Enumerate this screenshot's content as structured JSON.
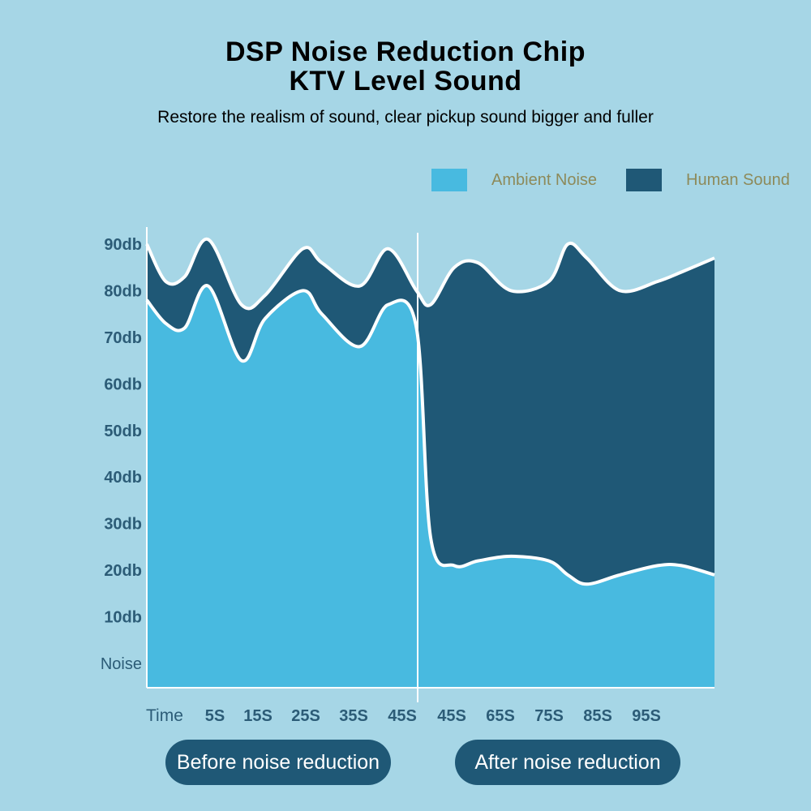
{
  "title_line1": "DSP Noise Reduction Chip",
  "title_line2": "KTV Level Sound",
  "subtitle": "Restore the realism of sound, clear pickup sound bigger and fuller",
  "colors": {
    "background": "#a6d6e6",
    "ambient": "#48bae0",
    "human": "#1f5876",
    "axis_text": "#2c5c77",
    "curve": "#ffffff",
    "legend_text": "#8d8a5a",
    "pill_bg": "#1f5876",
    "pill_text": "#ffffff"
  },
  "buttons": {
    "before": "Before noise reduction",
    "after": "After noise reduction"
  },
  "chart_data": {
    "type": "area",
    "title": "",
    "xlabel": "Time",
    "ylabel": "",
    "ylim": [
      0,
      90
    ],
    "y_tick_labels": [
      "Noise",
      "10db",
      "20db",
      "30db",
      "40db",
      "50db",
      "60db",
      "70db",
      "80db",
      "90db"
    ],
    "x_tick_labels": [
      "5S",
      "15S",
      "25S",
      "35S",
      "45S",
      "45S",
      "65S",
      "75S",
      "85S",
      "95S"
    ],
    "legend": [
      "Ambient Noise",
      "Human Sound"
    ],
    "legend_position": "top-right",
    "grid": false,
    "divider_after_tick": "45S",
    "x": [
      0,
      4,
      8,
      13,
      20,
      25,
      33,
      37,
      45,
      51,
      57,
      60,
      65,
      70,
      77,
      85,
      89,
      93,
      100,
      108,
      113,
      120
    ],
    "series": [
      {
        "name": "Ambient Noise",
        "color": "#48bae0",
        "values": [
          78,
          73,
          72,
          81,
          65,
          74,
          80,
          75,
          68,
          77,
          72,
          27,
          21,
          22,
          23,
          22,
          19,
          17,
          19,
          21,
          21,
          19
        ]
      },
      {
        "name": "Human Sound",
        "color": "#1f5876",
        "values": [
          90,
          82,
          83,
          91,
          77,
          79,
          89,
          86,
          81,
          89,
          80,
          77,
          85,
          86,
          80,
          82,
          90,
          87,
          80,
          82,
          84,
          87
        ]
      }
    ]
  }
}
